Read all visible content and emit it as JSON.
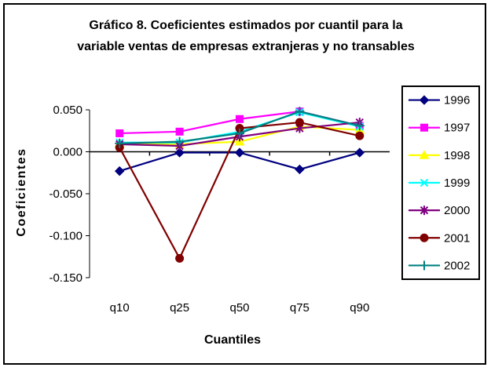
{
  "chart_data": {
    "type": "line",
    "title_lines": [
      "Gráfico 8. Coeficientes estimados por cuantil para la",
      "variable ventas de empresas extranjeras y no transables"
    ],
    "xlabel": "Cuantiles",
    "ylabel": "Coeficientes",
    "categories": [
      "q10",
      "q25",
      "q50",
      "q75",
      "q90"
    ],
    "ylim": [
      -0.15,
      0.05
    ],
    "yticks": [
      0.05,
      0.0,
      -0.05,
      -0.1,
      -0.15
    ],
    "ytick_labels": [
      "0.050",
      "0.000",
      "-0.050",
      "-0.100",
      "-0.150"
    ],
    "grid": false,
    "legend_position": "right",
    "series": [
      {
        "name": "1996",
        "color": "#000080",
        "marker": "diamond",
        "values": [
          -0.023,
          -0.001,
          -0.001,
          -0.021,
          -0.001
        ]
      },
      {
        "name": "1997",
        "color": "#FF00FF",
        "marker": "square",
        "values": [
          0.022,
          0.024,
          0.039,
          0.048,
          0.031
        ]
      },
      {
        "name": "1998",
        "color": "#FFFF00",
        "marker": "triangle",
        "values": [
          0.01,
          0.009,
          0.012,
          0.03,
          0.026
        ]
      },
      {
        "name": "1999",
        "color": "#00FFFF",
        "marker": "x",
        "values": [
          0.011,
          0.011,
          0.024,
          0.047,
          0.03
        ]
      },
      {
        "name": "2000",
        "color": "#800080",
        "marker": "star",
        "values": [
          0.009,
          0.007,
          0.018,
          0.028,
          0.035
        ]
      },
      {
        "name": "2001",
        "color": "#800000",
        "marker": "circle",
        "values": [
          0.005,
          -0.127,
          0.028,
          0.035,
          0.019
        ]
      },
      {
        "name": "2002",
        "color": "#008080",
        "marker": "plus",
        "values": [
          0.01,
          0.012,
          0.022,
          0.048,
          0.031
        ]
      }
    ]
  }
}
